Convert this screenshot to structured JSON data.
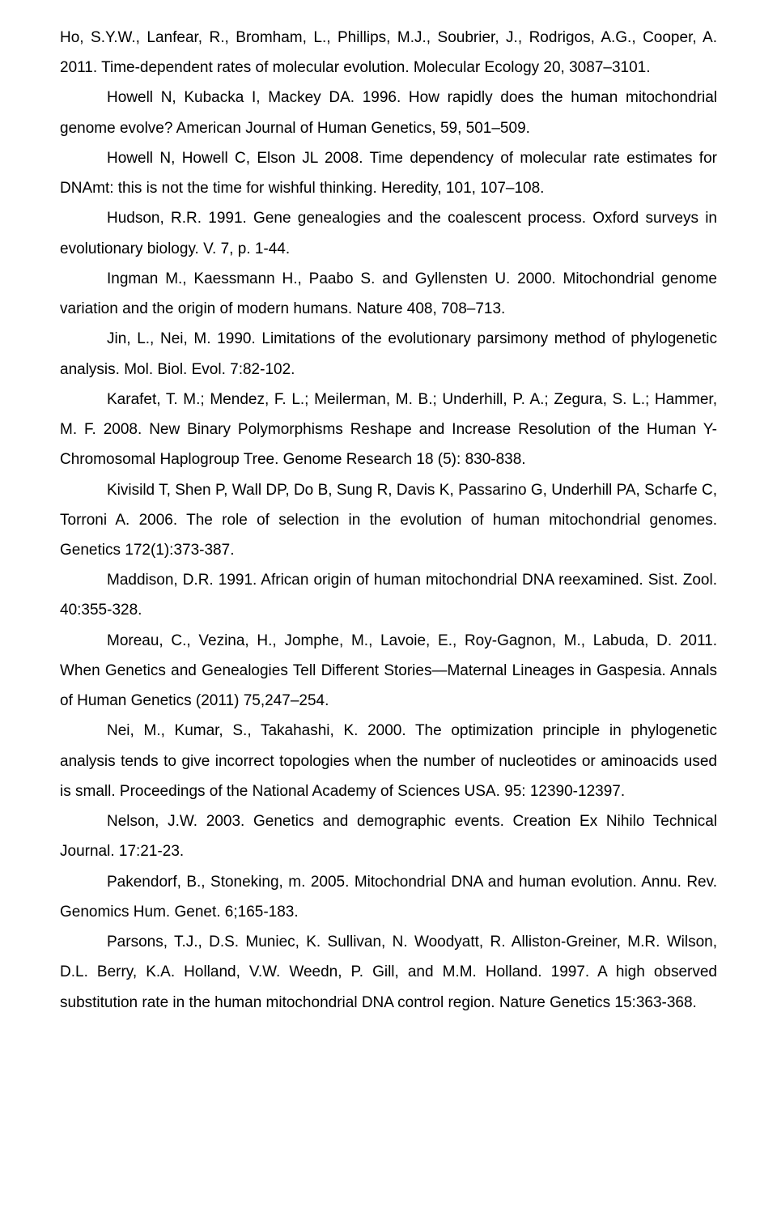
{
  "references": [
    "Ho, S.Y.W., Lanfear, R., Bromham, L., Phillips, M.J., Soubrier, J., Rodrigos, A.G., Cooper, A. 2011. Time-dependent rates of molecular evolution. Molecular Ecology 20, 3087–3101.",
    "Howell N, Kubacka I, Mackey DA. 1996. How rapidly does the human mitochondrial genome evolve? American Journal of Human Genetics, 59, 501–509.",
    "Howell N, Howell C, Elson JL 2008. Time dependency of molecular rate estimates for DNAmt: this is not the time for wishful thinking. Heredity, 101, 107–108.",
    "Hudson, R.R. 1991. Gene genealogies and the coalescent process. Oxford surveys in evolutionary biology. V. 7, p. 1-44.",
    "Ingman M., Kaessmann H., Paabo S. and Gyllensten U. 2000. Mitochondrial genome variation and the origin of modern humans. Nature 408, 708–713.",
    "Jin, L., Nei, M. 1990. Limitations of the evolutionary parsimony method of phylogenetic analysis. Mol. Biol. Evol. 7:82-102.",
    "Karafet, T. M.; Mendez, F. L.; Meilerman, M. B.; Underhill, P. A.; Zegura, S. L.; Hammer, M. F. 2008. New Binary Polymorphisms Reshape and Increase Resolution of the Human Y-Chromosomal Haplogroup Tree. Genome Research 18 (5): 830-838.",
    "Kivisild T, Shen P, Wall DP, Do B, Sung R, Davis K, Passarino G, Underhill PA, Scharfe C, Torroni A. 2006. The role of selection in the evolution of human mitochondrial genomes. Genetics 172(1):373-387.",
    "Maddison, D.R. 1991. African origin of human mitochondrial DNA reexamined. Sist. Zool. 40:355-328.",
    "Moreau, C., Vezina, H., Jomphe, M., Lavoie, E., Roy-Gagnon, M., Labuda, D. 2011. When Genetics and Genealogies Tell Different Stories—Maternal Lineages in Gaspesia. Annals of Human Genetics (2011) 75,247–254.",
    "Nei, M., Kumar, S., Takahashi, K. 2000. The optimization principle in phylogenetic analysis tends to give incorrect topologies when the number of nucleotides or aminoacids used is small. Proceedings of the National Academy of Sciences USA. 95: 12390-12397.",
    "Nelson, J.W. 2003. Genetics and demographic events. Creation Ex Nihilo Technical Journal. 17:21-23.",
    "Pakendorf, B., Stoneking, m. 2005. Mitochondrial DNA and human evolution. Annu. Rev. Genomics Hum. Genet. 6;165-183.",
    "Parsons, T.J., D.S. Muniec, K. Sullivan, N. Woodyatt, R. Alliston-Greiner, M.R. Wilson, D.L. Berry, K.A. Holland, V.W. Weedn, P. Gill, and M.M. Holland. 1997. A high observed substitution rate in the human mitochondrial DNA control region. Nature Genetics 15:363-368."
  ]
}
